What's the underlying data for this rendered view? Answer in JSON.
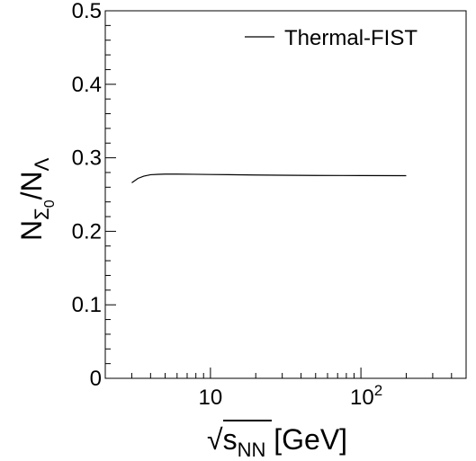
{
  "chart_data": {
    "type": "line",
    "title": "",
    "x_scale": "log",
    "xlim": [
      2.0,
      500
    ],
    "ylim": [
      0,
      0.5
    ],
    "grid": false,
    "legend_placement": "top-right",
    "y_ticks": [
      "0",
      "0.1",
      "0.2",
      "0.3",
      "0.4",
      "0.5"
    ],
    "x_tick_labels": [
      {
        "value": 10,
        "base": "10",
        "exp": ""
      },
      {
        "value": 100,
        "base": "10",
        "exp": "2"
      }
    ],
    "xlabel": {
      "sqrt_symbol": "√",
      "base": "s",
      "subscript": "NN",
      "unit": " [GeV]"
    },
    "ylabel": {
      "n1": "N",
      "sub1": "Σ",
      "sub1_sub": "0",
      "slash": "/",
      "n2": "N",
      "sub2": "Λ"
    },
    "series": [
      {
        "name": "Thermal-FIST",
        "color": "#000000",
        "x": [
          3.0,
          3.3,
          3.6,
          4.0,
          4.5,
          5.0,
          6.0,
          7.7,
          10,
          15,
          20,
          30,
          50,
          100,
          200
        ],
        "y": [
          0.266,
          0.272,
          0.275,
          0.277,
          0.2775,
          0.2778,
          0.2778,
          0.2776,
          0.2773,
          0.2769,
          0.2766,
          0.2763,
          0.276,
          0.2758,
          0.2757
        ]
      }
    ]
  }
}
